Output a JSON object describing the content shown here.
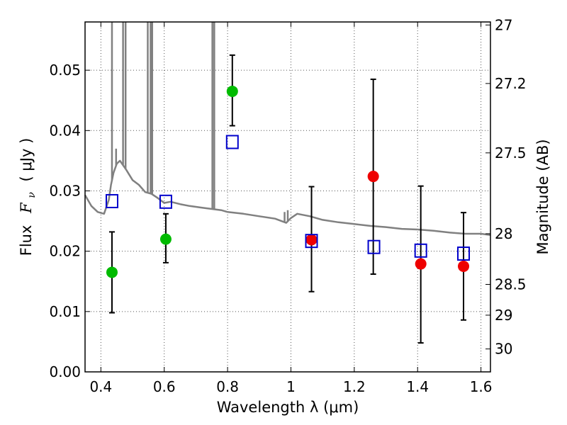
{
  "chart_data": {
    "type": "scatter",
    "title": "",
    "xlabel": "Wavelength  λ (μm)",
    "ylabel_prefix": "Flux",
    "ylabel_math": "F",
    "ylabel_sub": "ν",
    "ylabel_suffix": "( μJy )",
    "y2label": "Magnitude (AB)",
    "xlim": [
      0.35,
      1.63
    ],
    "ylim": [
      0.0,
      0.058
    ],
    "grid": true,
    "x_ticks": [
      0.4,
      0.6,
      0.8,
      1.0,
      1.2,
      1.4,
      1.6
    ],
    "x_tick_labels": [
      "0.4",
      "0.6",
      "0.8",
      "1",
      "1.2",
      "1.4",
      "1.6"
    ],
    "y_ticks": [
      0.0,
      0.01,
      0.02,
      0.03,
      0.04,
      0.05
    ],
    "y_tick_labels": [
      "0.00",
      "0.01",
      "0.02",
      "0.03",
      "0.04",
      "0.05"
    ],
    "y2_ticks": [
      {
        "label": "27",
        "flux": 0.0575
      },
      {
        "label": "27.2",
        "flux": 0.0478
      },
      {
        "label": "27.5",
        "flux": 0.0363
      },
      {
        "label": "28",
        "flux": 0.0229
      },
      {
        "label": "28.5",
        "flux": 0.0145
      },
      {
        "label": "29",
        "flux": 0.0094
      },
      {
        "label": "30",
        "flux": 0.0038
      }
    ],
    "colors": {
      "template": "#808080",
      "green": "#00bb00",
      "red": "#ee0000",
      "model": "#0000cc",
      "errorbar": "#000000",
      "grid": "#555555"
    },
    "series": [
      {
        "kind": "template",
        "x": [
          0.35,
          0.37,
          0.39,
          0.41,
          0.425,
          0.432,
          0.44,
          0.45,
          0.46,
          0.48,
          0.5,
          0.52,
          0.54,
          0.56,
          0.58,
          0.6,
          0.62,
          0.65,
          0.68,
          0.72,
          0.75,
          0.78,
          0.8,
          0.85,
          0.9,
          0.95,
          0.97,
          0.985,
          1.0,
          1.02,
          1.06,
          1.1,
          1.15,
          1.2,
          1.25,
          1.3,
          1.35,
          1.4,
          1.45,
          1.5,
          1.55,
          1.6,
          1.63
        ],
        "y": [
          0.0293,
          0.0275,
          0.0265,
          0.0262,
          0.0285,
          0.031,
          0.033,
          0.0345,
          0.035,
          0.0335,
          0.0318,
          0.031,
          0.0298,
          0.0295,
          0.0288,
          0.028,
          0.0282,
          0.0278,
          0.0275,
          0.0272,
          0.027,
          0.0268,
          0.0265,
          0.0262,
          0.0258,
          0.0254,
          0.025,
          0.0247,
          0.0255,
          0.0262,
          0.0258,
          0.0252,
          0.0248,
          0.0245,
          0.0242,
          0.024,
          0.0237,
          0.0236,
          0.0234,
          0.0231,
          0.0229,
          0.0229,
          0.0227
        ]
      },
      {
        "kind": "template_spikes",
        "x": [
          0.435,
          0.448,
          0.47,
          0.478,
          0.548,
          0.557,
          0.562,
          0.752,
          0.758,
          0.98,
          0.99
        ],
        "y": [
          0.058,
          0.037,
          0.058,
          0.058,
          0.058,
          0.058,
          0.058,
          0.058,
          0.058,
          0.0265,
          0.0268
        ]
      },
      {
        "kind": "green_points",
        "x": [
          0.435,
          0.605,
          0.815
        ],
        "y": [
          0.0165,
          0.022,
          0.0465
        ],
        "yerr_low": [
          0.0098,
          0.0181,
          0.0408
        ],
        "yerr_high": [
          0.0232,
          0.0262,
          0.0525
        ]
      },
      {
        "kind": "red_points",
        "x": [
          1.065,
          1.26,
          1.41,
          1.545
        ],
        "y": [
          0.0219,
          0.0324,
          0.0179,
          0.0175
        ],
        "yerr_low": [
          0.0133,
          0.0162,
          0.0048,
          0.0086
        ],
        "yerr_high": [
          0.0307,
          0.0485,
          0.0308,
          0.0264
        ]
      },
      {
        "kind": "model_squares",
        "x": [
          0.435,
          0.605,
          0.815,
          1.065,
          1.262,
          1.41,
          1.545
        ],
        "y": [
          0.0283,
          0.0282,
          0.0381,
          0.0217,
          0.0207,
          0.0201,
          0.0196
        ]
      }
    ]
  }
}
